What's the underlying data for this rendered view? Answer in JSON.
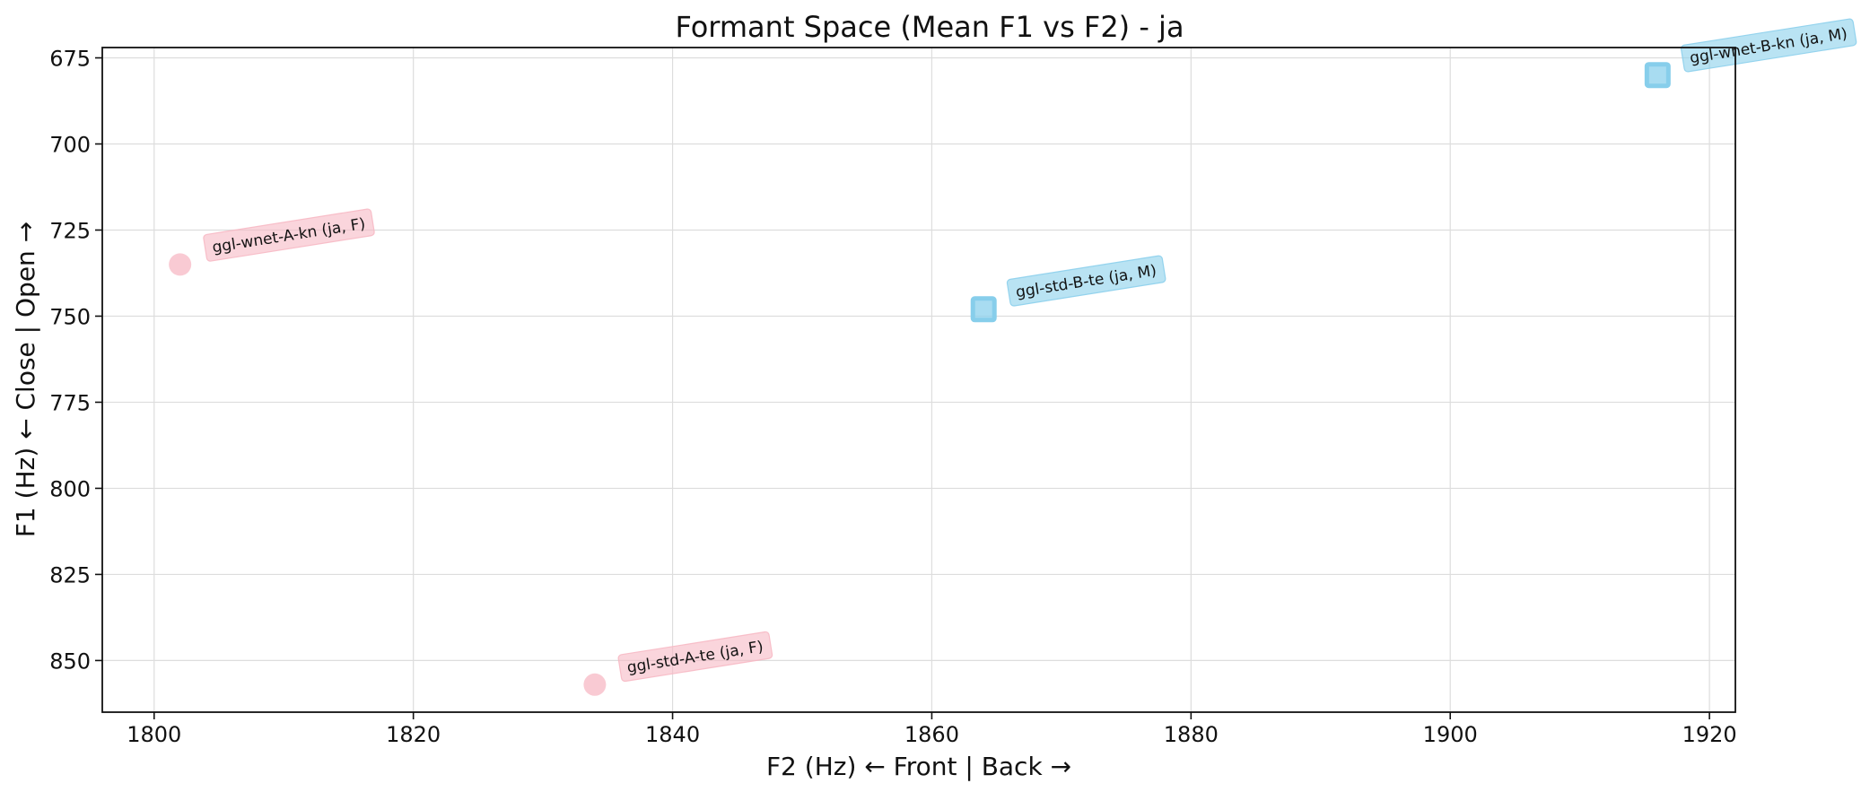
{
  "chart_data": {
    "type": "scatter",
    "title": "Formant Space (Mean F1 vs F2) - ja",
    "xlabel": "F2 (Hz) ← Front | Back →",
    "ylabel": "F1 (Hz) ← Close | Open →",
    "xlim": [
      1796,
      1922
    ],
    "ylim": [
      672,
      865
    ],
    "y_inverted": true,
    "grid": true,
    "x_ticks": [
      1800,
      1820,
      1840,
      1860,
      1880,
      1900,
      1920
    ],
    "y_ticks": [
      675,
      700,
      725,
      750,
      775,
      800,
      825,
      850
    ],
    "points": [
      {
        "label": "ggl-wnet-A-kn (ja, F)",
        "x": 1802,
        "y": 735,
        "marker": "circle",
        "color": "#f7b6c2"
      },
      {
        "label": "ggl-std-A-te (ja, F)",
        "x": 1834,
        "y": 857,
        "marker": "circle",
        "color": "#f7b6c2"
      },
      {
        "label": "ggl-std-B-te (ja, M)",
        "x": 1864,
        "y": 748,
        "marker": "square",
        "color": "#87ceeb"
      },
      {
        "label": "ggl-wnet-B-kn (ja, M)",
        "x": 1916,
        "y": 680,
        "marker": "square",
        "color": "#87ceeb"
      }
    ]
  }
}
